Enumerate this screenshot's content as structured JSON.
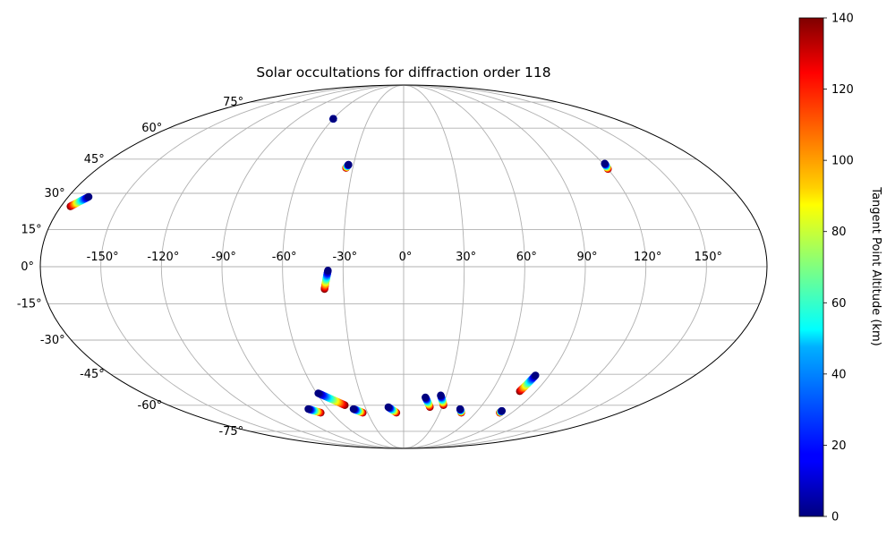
{
  "chart_data": {
    "type": "scatter",
    "projection": "mollweide",
    "title": "Solar occultations for diffraction order 118",
    "lon_tick_labels": [
      "-150°",
      "-120°",
      "-90°",
      "-60°",
      "-30°",
      "0°",
      "30°",
      "60°",
      "90°",
      "120°",
      "150°"
    ],
    "lon_ticks": [
      -150,
      -120,
      -90,
      -60,
      -30,
      0,
      30,
      60,
      90,
      120,
      150
    ],
    "lat_tick_labels": [
      "-75°",
      "-60°",
      "-45°",
      "-30°",
      "-15°",
      "0°",
      "15°",
      "30°",
      "45°",
      "60°",
      "75°"
    ],
    "lat_ticks": [
      -75,
      -60,
      -45,
      -30,
      -15,
      0,
      15,
      30,
      45,
      60,
      75
    ],
    "grid": true,
    "colorbar": {
      "label": "Tangent Point Altitude (km)",
      "range": [
        0,
        140
      ],
      "tick_labels": [
        "0",
        "20",
        "40",
        "60",
        "80",
        "100",
        "120",
        "140"
      ],
      "ticks": [
        0,
        20,
        40,
        60,
        80,
        100,
        120,
        140
      ],
      "colormap": "jet",
      "position": "right"
    },
    "tracks": [
      {
        "start": [
          -175,
          24.5
        ],
        "end": [
          -169,
          28.5
        ]
      },
      {
        "start": [
          -60,
          65
        ],
        "end": [
          -60,
          65
        ]
      },
      {
        "start": [
          -34,
          41
        ],
        "end": [
          -33,
          42.5
        ]
      },
      {
        "start": [
          120,
          40.5
        ],
        "end": [
          121,
          43
        ]
      },
      {
        "start": [
          -39.5,
          -9
        ],
        "end": [
          -37.5,
          -1.5
        ]
      },
      {
        "start": [
          -69,
          -64
        ],
        "end": [
          -76,
          -62
        ]
      },
      {
        "start": [
          -45,
          -60
        ],
        "end": [
          -59,
          -54
        ]
      },
      {
        "start": [
          -34,
          -64
        ],
        "end": [
          -40,
          -62
        ]
      },
      {
        "start": [
          -6,
          -64
        ],
        "end": [
          -12,
          -61
        ]
      },
      {
        "start": [
          20.5,
          -61
        ],
        "end": [
          15.5,
          -56
        ]
      },
      {
        "start": [
          30.5,
          -60
        ],
        "end": [
          26,
          -55
        ]
      },
      {
        "start": [
          48,
          -64
        ],
        "end": [
          45,
          -62
        ]
      },
      {
        "start": [
          79,
          -53
        ],
        "end": [
          81.5,
          -45.5
        ]
      },
      {
        "start": [
          80,
          -64
        ],
        "end": [
          80,
          -63
        ]
      }
    ]
  }
}
